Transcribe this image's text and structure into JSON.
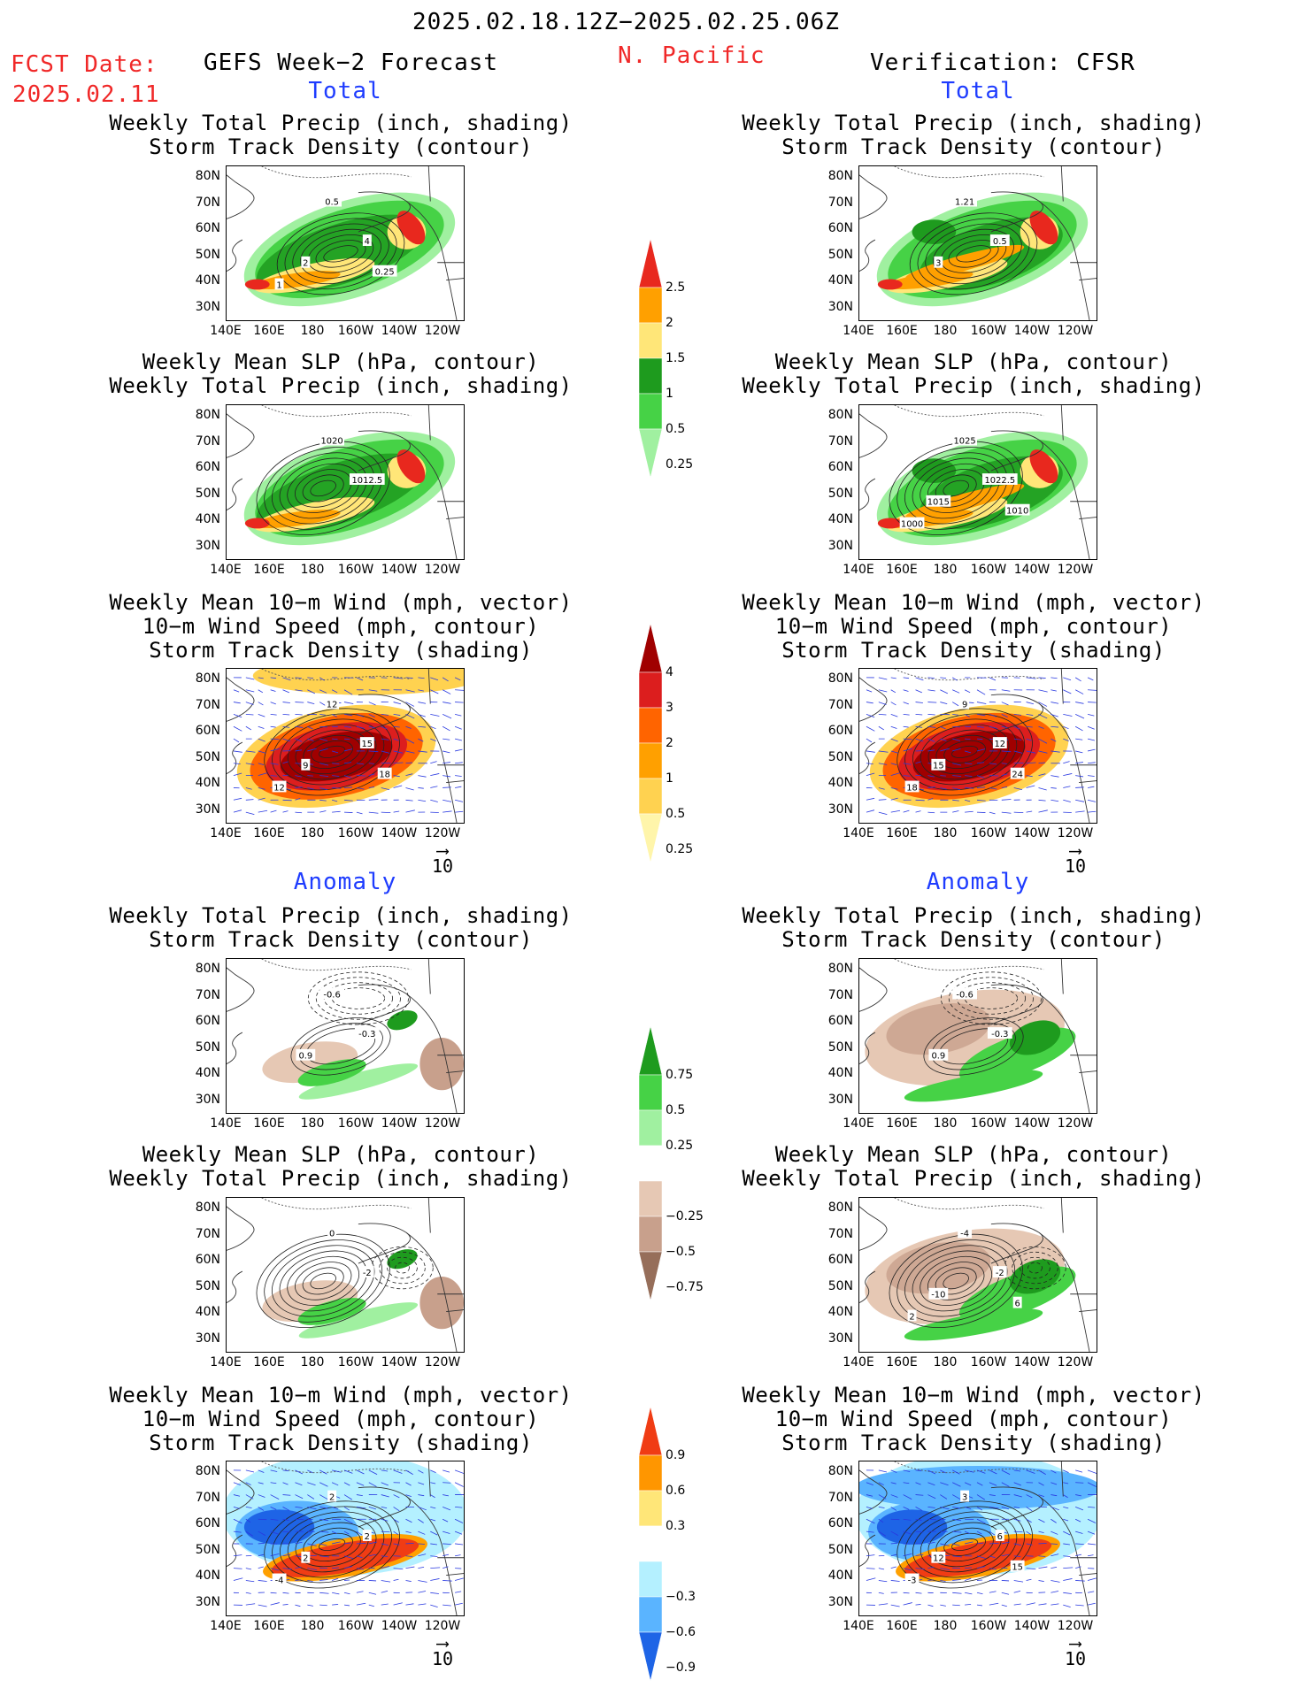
{
  "header": {
    "date_range": "2025.02.18.12Z−2025.02.25.06Z",
    "fcst_label": "FCST Date:",
    "fcst_date": "2025.02.11",
    "forecast_title": "GEFS Week−2 Forecast",
    "region": "N. Pacific",
    "verification": "Verification: CFSR"
  },
  "sections": {
    "total": "Total",
    "anomaly": "Anomaly"
  },
  "titles": {
    "precip_storm": [
      "Weekly Total Precip (inch, shading)",
      "Storm Track Density (contour)"
    ],
    "slp_precip": [
      "Weekly Mean SLP (hPa, contour)",
      "Weekly Total Precip (inch, shading)"
    ],
    "wind_storm": [
      "Weekly Mean 10−m Wind (mph, vector)",
      "10−m Wind Speed (mph, contour)",
      "Storm Track Density (shading)"
    ]
  },
  "axes": {
    "lat_ticks": [
      "80N",
      "70N",
      "60N",
      "50N",
      "40N",
      "30N"
    ],
    "lon_ticks": [
      "140E",
      "160E",
      "180",
      "160W",
      "140W",
      "120W"
    ]
  },
  "vector_ref": "10",
  "colorbars": {
    "precip_total": {
      "labels": [
        "2.5",
        "2",
        "1.5",
        "1",
        "0.5",
        "0.25"
      ],
      "colors": [
        "#e8281e",
        "#ffa000",
        "#ffe678",
        "#1e9b1e",
        "#46d246",
        "#a0f0a0"
      ]
    },
    "storm_total": {
      "labels": [
        "4",
        "3",
        "2",
        "1",
        "0.5",
        "0.25"
      ],
      "colors": [
        "#a00000",
        "#dc1e1e",
        "#ff6400",
        "#ffa000",
        "#ffd250",
        "#fff5aa"
      ]
    },
    "precip_anom": {
      "labels": [
        "0.75",
        "0.5",
        "0.25",
        "−0.25",
        "−0.5",
        "−0.75"
      ],
      "colors": [
        "#1e9b1e",
        "#46d246",
        "#a0f0a0",
        "#ffffff",
        "#e6c8b4",
        "#c8a08c",
        "#966e5a"
      ]
    },
    "storm_anom": {
      "labels": [
        "0.9",
        "0.6",
        "0.3",
        "−0.3",
        "−0.6",
        "−0.9"
      ],
      "colors": [
        "#f03c14",
        "#ff9600",
        "#ffe678",
        "#ffffff",
        "#b4f0ff",
        "#5ab4ff",
        "#1e64e6"
      ]
    }
  },
  "contour_labels": {
    "r1l": [
      "0.5",
      "4",
      "2",
      "1",
      "0.25"
    ],
    "r1r": [
      "1.21",
      "0.5",
      "3"
    ],
    "r2l": [
      "1020",
      "1012.5"
    ],
    "r2r": [
      "1025",
      "1022.5",
      "1015",
      "1000",
      "1010"
    ],
    "r3l": [
      "12",
      "15",
      "9",
      "12",
      "18"
    ],
    "r3r": [
      "9",
      "12",
      "15",
      "18",
      "24"
    ],
    "r4l": [
      "-0.6",
      "-0.3",
      "0.9"
    ],
    "r4r": [
      "-0.6",
      "-0.3",
      "0.9"
    ],
    "r5l": [
      "0",
      "-2"
    ],
    "r5r": [
      "-4",
      "-2",
      "-10",
      "2",
      "6"
    ],
    "r6l": [
      "2",
      "2",
      "2",
      "-4"
    ],
    "r6r": [
      "3",
      "6",
      "12",
      "-3",
      "15"
    ]
  }
}
